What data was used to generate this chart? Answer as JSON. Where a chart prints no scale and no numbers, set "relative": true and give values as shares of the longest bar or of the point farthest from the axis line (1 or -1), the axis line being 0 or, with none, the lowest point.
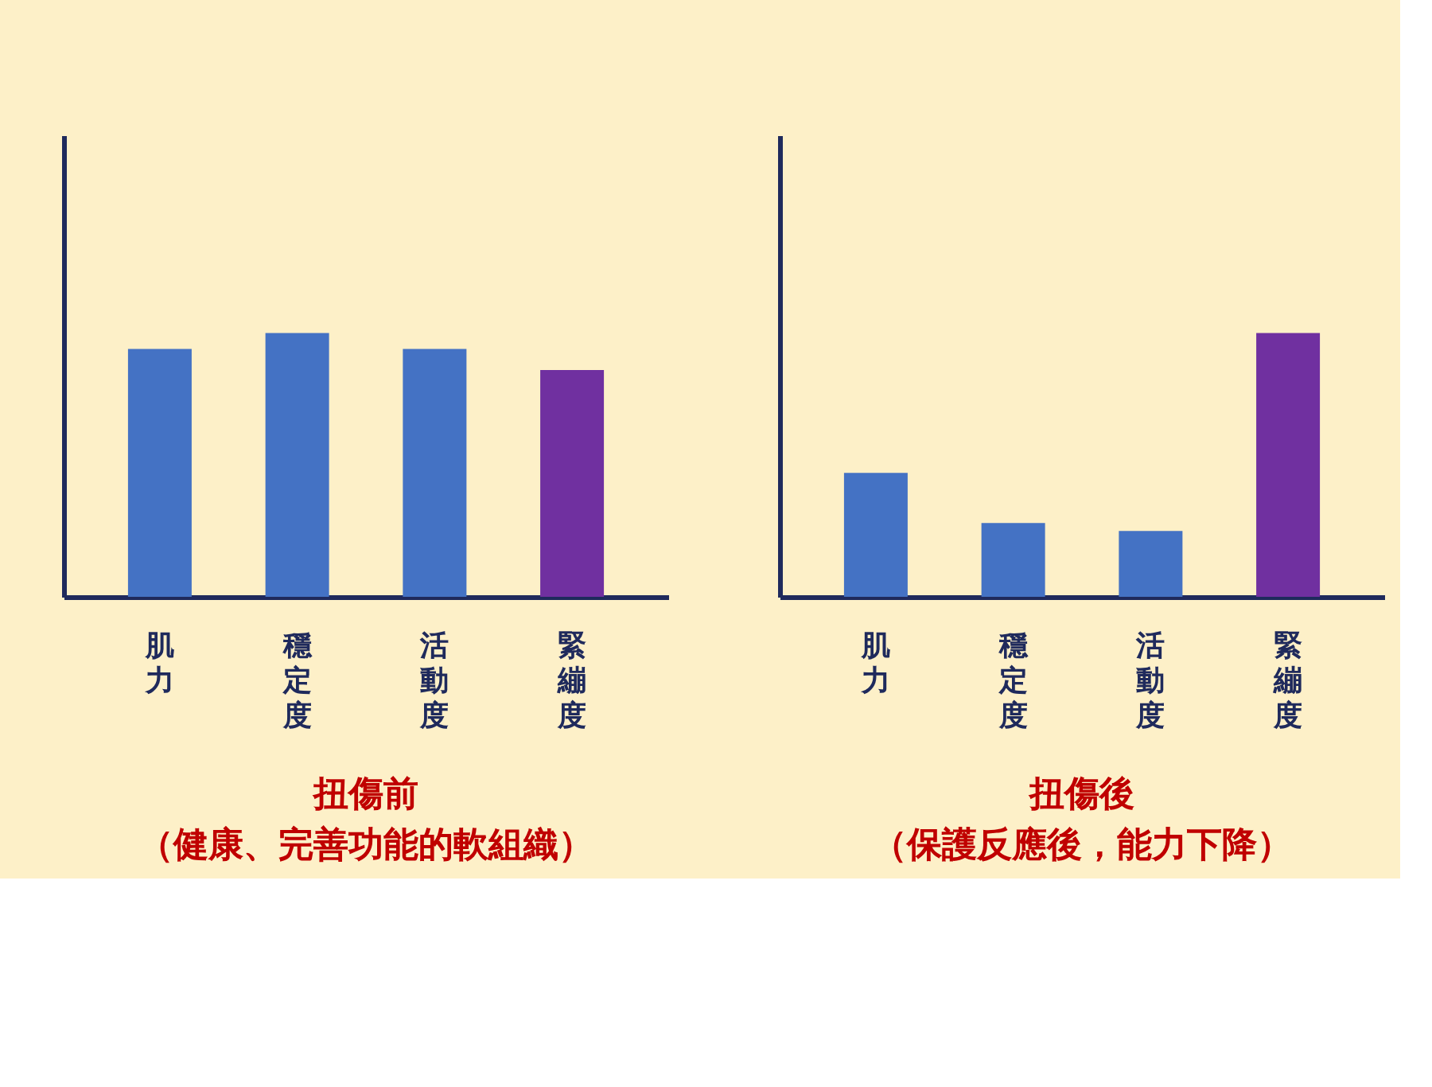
{
  "chart_data": [
    {
      "type": "bar",
      "title": "扭傷前",
      "subtitle": "（健康、完善功能的軟組織）",
      "categories": [
        "肌力",
        "穩定度",
        "活動度",
        "緊繃度"
      ],
      "values": [
        0.94,
        1,
        0.94,
        0.86
      ],
      "colors": [
        "#4472c4",
        "#4472c4",
        "#4472c4",
        "#7030a0"
      ],
      "relative": true,
      "grid": false
    },
    {
      "type": "bar",
      "title": "扭傷後",
      "subtitle": "（保護反應後，能力下降）",
      "categories": [
        "肌力",
        "穩定度",
        "活動度",
        "緊繃度"
      ],
      "values": [
        0.47,
        0.28,
        0.25,
        1
      ],
      "colors": [
        "#4472c4",
        "#4472c4",
        "#4472c4",
        "#7030a0"
      ],
      "relative": true,
      "grid": false
    }
  ]
}
